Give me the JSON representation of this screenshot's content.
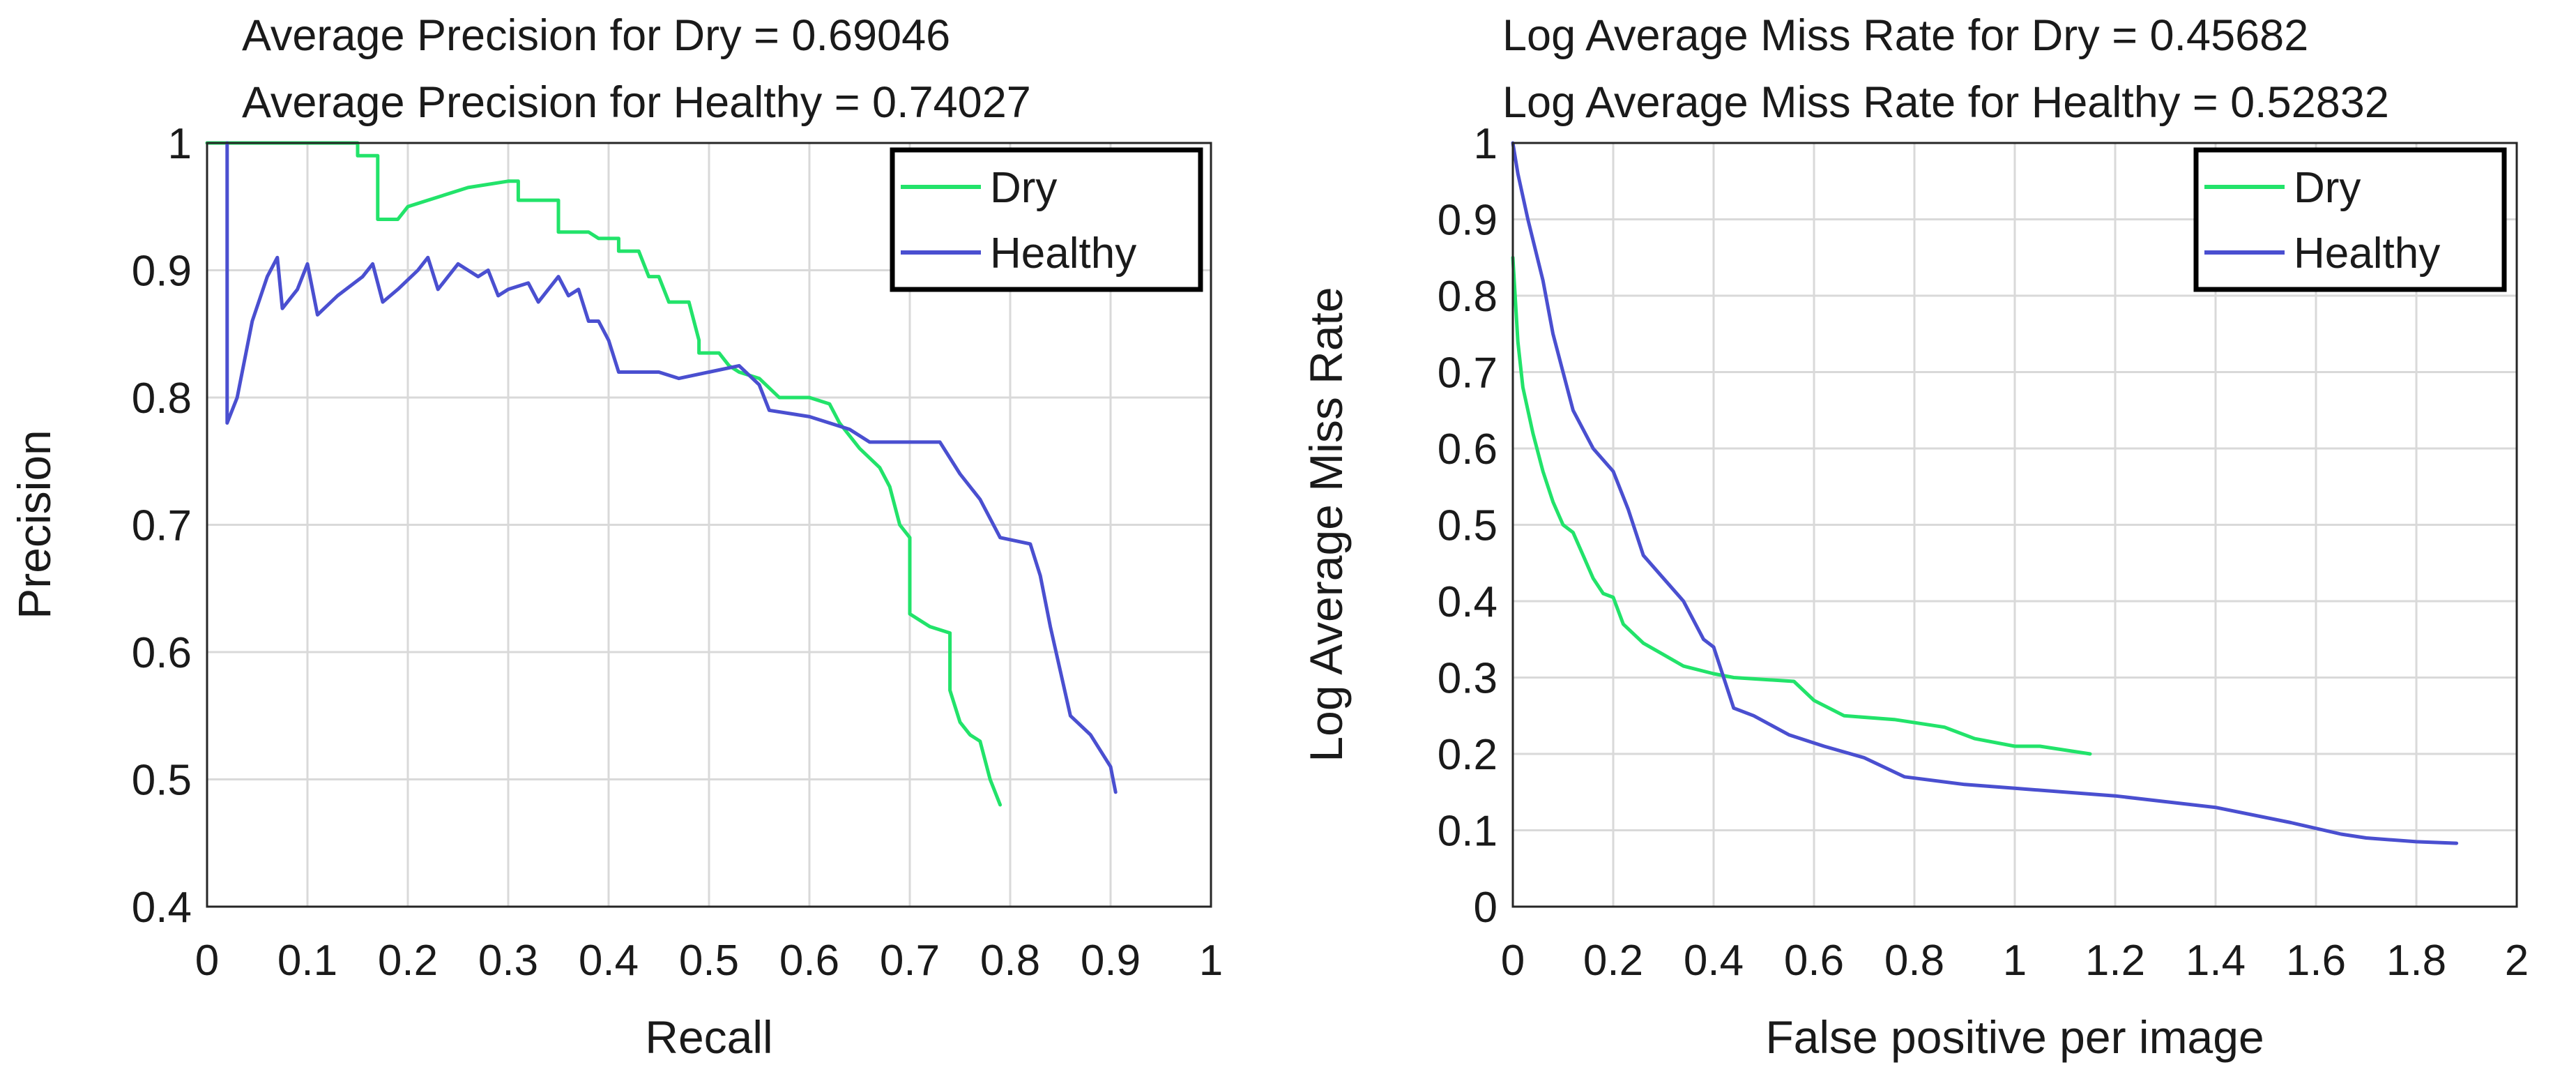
{
  "chart_data": [
    {
      "type": "line",
      "title_lines": [
        "Average Precision for Dry = 0.69046",
        "Average Precision for Healthy = 0.74027"
      ],
      "xlabel": "Recall",
      "ylabel": "Precision",
      "xlim": [
        0,
        1
      ],
      "ylim": [
        0.4,
        1
      ],
      "xticks": [
        0,
        0.1,
        0.2,
        0.3,
        0.4,
        0.5,
        0.6,
        0.7,
        0.8,
        0.9,
        1
      ],
      "xtick_labels": [
        "0",
        "0.1",
        "0.2",
        "0.3",
        "0.4",
        "0.5",
        "0.6",
        "0.7",
        "0.8",
        "0.9",
        "1"
      ],
      "yticks": [
        0.4,
        0.5,
        0.6,
        0.7,
        0.8,
        0.9,
        1
      ],
      "ytick_labels": [
        "0.4",
        "0.5",
        "0.6",
        "0.7",
        "0.8",
        "0.9",
        "1"
      ],
      "grid": true,
      "legend_position": "top-right",
      "series": [
        {
          "name": "Dry",
          "color": "#22e36a",
          "points": [
            [
              0.0,
              1.0
            ],
            [
              0.15,
              1.0
            ],
            [
              0.15,
              0.99
            ],
            [
              0.17,
              0.99
            ],
            [
              0.17,
              0.94
            ],
            [
              0.19,
              0.94
            ],
            [
              0.2,
              0.95
            ],
            [
              0.22,
              0.955
            ],
            [
              0.26,
              0.965
            ],
            [
              0.3,
              0.97
            ],
            [
              0.31,
              0.97
            ],
            [
              0.31,
              0.955
            ],
            [
              0.35,
              0.955
            ],
            [
              0.35,
              0.93
            ],
            [
              0.38,
              0.93
            ],
            [
              0.39,
              0.925
            ],
            [
              0.41,
              0.925
            ],
            [
              0.41,
              0.915
            ],
            [
              0.43,
              0.915
            ],
            [
              0.44,
              0.895
            ],
            [
              0.45,
              0.895
            ],
            [
              0.46,
              0.875
            ],
            [
              0.48,
              0.875
            ],
            [
              0.49,
              0.845
            ],
            [
              0.49,
              0.835
            ],
            [
              0.51,
              0.835
            ],
            [
              0.52,
              0.825
            ],
            [
              0.53,
              0.82
            ],
            [
              0.55,
              0.815
            ],
            [
              0.57,
              0.8
            ],
            [
              0.6,
              0.8
            ],
            [
              0.62,
              0.795
            ],
            [
              0.63,
              0.78
            ],
            [
              0.65,
              0.76
            ],
            [
              0.67,
              0.745
            ],
            [
              0.68,
              0.73
            ],
            [
              0.69,
              0.7
            ],
            [
              0.7,
              0.69
            ],
            [
              0.7,
              0.63
            ],
            [
              0.72,
              0.62
            ],
            [
              0.74,
              0.615
            ],
            [
              0.74,
              0.57
            ],
            [
              0.75,
              0.545
            ],
            [
              0.76,
              0.535
            ],
            [
              0.77,
              0.53
            ],
            [
              0.78,
              0.5
            ],
            [
              0.79,
              0.48
            ]
          ]
        },
        {
          "name": "Healthy",
          "color": "#4a4fd0",
          "points": [
            [
              0.02,
              1.0
            ],
            [
              0.02,
              0.78
            ],
            [
              0.03,
              0.8
            ],
            [
              0.045,
              0.86
            ],
            [
              0.06,
              0.895
            ],
            [
              0.07,
              0.91
            ],
            [
              0.075,
              0.87
            ],
            [
              0.09,
              0.885
            ],
            [
              0.1,
              0.905
            ],
            [
              0.11,
              0.865
            ],
            [
              0.13,
              0.88
            ],
            [
              0.155,
              0.895
            ],
            [
              0.165,
              0.905
            ],
            [
              0.175,
              0.875
            ],
            [
              0.19,
              0.885
            ],
            [
              0.21,
              0.9
            ],
            [
              0.22,
              0.91
            ],
            [
              0.23,
              0.885
            ],
            [
              0.25,
              0.905
            ],
            [
              0.27,
              0.895
            ],
            [
              0.28,
              0.9
            ],
            [
              0.29,
              0.88
            ],
            [
              0.3,
              0.885
            ],
            [
              0.32,
              0.89
            ],
            [
              0.33,
              0.875
            ],
            [
              0.35,
              0.895
            ],
            [
              0.36,
              0.88
            ],
            [
              0.37,
              0.885
            ],
            [
              0.38,
              0.86
            ],
            [
              0.39,
              0.86
            ],
            [
              0.4,
              0.845
            ],
            [
              0.41,
              0.82
            ],
            [
              0.45,
              0.82
            ],
            [
              0.47,
              0.815
            ],
            [
              0.5,
              0.82
            ],
            [
              0.53,
              0.825
            ],
            [
              0.55,
              0.81
            ],
            [
              0.56,
              0.79
            ],
            [
              0.6,
              0.785
            ],
            [
              0.62,
              0.78
            ],
            [
              0.64,
              0.775
            ],
            [
              0.66,
              0.765
            ],
            [
              0.7,
              0.765
            ],
            [
              0.73,
              0.765
            ],
            [
              0.75,
              0.74
            ],
            [
              0.77,
              0.72
            ],
            [
              0.79,
              0.69
            ],
            [
              0.82,
              0.685
            ],
            [
              0.83,
              0.66
            ],
            [
              0.84,
              0.62
            ],
            [
              0.85,
              0.585
            ],
            [
              0.86,
              0.55
            ],
            [
              0.88,
              0.535
            ],
            [
              0.9,
              0.51
            ],
            [
              0.905,
              0.49
            ]
          ]
        }
      ]
    },
    {
      "type": "line",
      "title_lines": [
        "Log Average Miss Rate for Dry = 0.45682",
        "Log Average Miss Rate for Healthy = 0.52832"
      ],
      "xlabel": "False positive per image",
      "ylabel": "Log Average Miss Rate",
      "xlim": [
        0,
        2
      ],
      "ylim": [
        0,
        1
      ],
      "xticks": [
        0,
        0.2,
        0.4,
        0.6,
        0.8,
        1,
        1.2,
        1.4,
        1.6,
        1.8,
        2
      ],
      "xtick_labels": [
        "0",
        "0.2",
        "0.4",
        "0.6",
        "0.8",
        "1",
        "1.2",
        "1.4",
        "1.6",
        "1.8",
        "2"
      ],
      "yticks": [
        0,
        0.1,
        0.2,
        0.3,
        0.4,
        0.5,
        0.6,
        0.7,
        0.8,
        0.9,
        1
      ],
      "ytick_labels": [
        "0",
        "0.1",
        "0.2",
        "0.3",
        "0.4",
        "0.5",
        "0.6",
        "0.7",
        "0.8",
        "0.9",
        "1"
      ],
      "grid": true,
      "legend_position": "top-right",
      "series": [
        {
          "name": "Dry",
          "color": "#22e36a",
          "points": [
            [
              0.0,
              0.85
            ],
            [
              0.01,
              0.74
            ],
            [
              0.02,
              0.68
            ],
            [
              0.04,
              0.62
            ],
            [
              0.06,
              0.57
            ],
            [
              0.08,
              0.53
            ],
            [
              0.1,
              0.5
            ],
            [
              0.12,
              0.49
            ],
            [
              0.14,
              0.46
            ],
            [
              0.16,
              0.43
            ],
            [
              0.18,
              0.41
            ],
            [
              0.2,
              0.405
            ],
            [
              0.22,
              0.37
            ],
            [
              0.26,
              0.345
            ],
            [
              0.3,
              0.33
            ],
            [
              0.34,
              0.315
            ],
            [
              0.4,
              0.305
            ],
            [
              0.44,
              0.3
            ],
            [
              0.56,
              0.295
            ],
            [
              0.6,
              0.27
            ],
            [
              0.66,
              0.25
            ],
            [
              0.76,
              0.245
            ],
            [
              0.86,
              0.235
            ],
            [
              0.92,
              0.22
            ],
            [
              1.0,
              0.21
            ],
            [
              1.05,
              0.21
            ],
            [
              1.1,
              0.205
            ],
            [
              1.15,
              0.2
            ]
          ]
        },
        {
          "name": "Healthy",
          "color": "#4a4fd0",
          "points": [
            [
              0.0,
              1.0
            ],
            [
              0.01,
              0.96
            ],
            [
              0.03,
              0.9
            ],
            [
              0.06,
              0.82
            ],
            [
              0.08,
              0.75
            ],
            [
              0.1,
              0.7
            ],
            [
              0.12,
              0.65
            ],
            [
              0.16,
              0.6
            ],
            [
              0.2,
              0.57
            ],
            [
              0.23,
              0.52
            ],
            [
              0.26,
              0.46
            ],
            [
              0.3,
              0.43
            ],
            [
              0.34,
              0.4
            ],
            [
              0.38,
              0.35
            ],
            [
              0.4,
              0.34
            ],
            [
              0.42,
              0.3
            ],
            [
              0.44,
              0.26
            ],
            [
              0.48,
              0.25
            ],
            [
              0.55,
              0.225
            ],
            [
              0.62,
              0.21
            ],
            [
              0.7,
              0.195
            ],
            [
              0.78,
              0.17
            ],
            [
              0.9,
              0.16
            ],
            [
              1.0,
              0.155
            ],
            [
              1.2,
              0.145
            ],
            [
              1.4,
              0.13
            ],
            [
              1.55,
              0.11
            ],
            [
              1.65,
              0.095
            ],
            [
              1.7,
              0.09
            ],
            [
              1.8,
              0.085
            ],
            [
              1.88,
              0.083
            ]
          ]
        }
      ]
    }
  ]
}
